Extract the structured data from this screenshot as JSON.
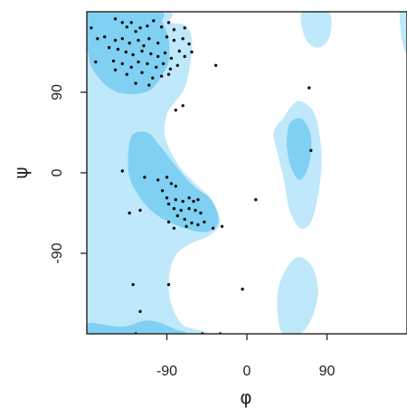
{
  "chart_data": {
    "type": "scatter",
    "title": "",
    "xlabel": "φ",
    "ylabel": "ψ",
    "xlim": [
      -180,
      180
    ],
    "ylim": [
      -180,
      180
    ],
    "xticks": [
      -90,
      0,
      90
    ],
    "xtick_labels": [
      "-90",
      "0",
      "90"
    ],
    "yticks": [
      90,
      0,
      -90
    ],
    "ytick_labels": [
      "90",
      "0",
      "-90"
    ],
    "grid": false,
    "legend": "none",
    "colors": {
      "allowed_region": "#bfe8fa",
      "favoured_region": "#7fd0f2",
      "points": "#111111",
      "frame": "#222222"
    },
    "regions": {
      "allowed": [
        [
          [
            -180,
            180
          ],
          [
            -90,
            180
          ],
          [
            -88,
            168
          ],
          [
            -70,
            165
          ],
          [
            -62,
            150
          ],
          [
            -64,
            120
          ],
          [
            -70,
            95
          ],
          [
            -80,
            80
          ],
          [
            -90,
            65
          ],
          [
            -92,
            40
          ],
          [
            -78,
            10
          ],
          [
            -60,
            -10
          ],
          [
            -40,
            -30
          ],
          [
            -30,
            -55
          ],
          [
            -42,
            -70
          ],
          [
            -65,
            -80
          ],
          [
            -82,
            -95
          ],
          [
            -88,
            -125
          ],
          [
            -84,
            -150
          ],
          [
            -72,
            -170
          ],
          [
            -50,
            -180
          ],
          [
            -180,
            -180
          ]
        ],
        [
          [
            40,
            60
          ],
          [
            57,
            80
          ],
          [
            75,
            68
          ],
          [
            82,
            40
          ],
          [
            84,
            10
          ],
          [
            80,
            -25
          ],
          [
            72,
            -55
          ],
          [
            60,
            -62
          ],
          [
            48,
            -42
          ],
          [
            42,
            -10
          ],
          [
            35,
            20
          ],
          [
            30,
            45
          ]
        ],
        [
          [
            38,
            -120
          ],
          [
            55,
            -95
          ],
          [
            72,
            -103
          ],
          [
            80,
            -130
          ],
          [
            74,
            -160
          ],
          [
            60,
            -180
          ],
          [
            40,
            -180
          ],
          [
            34,
            -150
          ]
        ],
        [
          [
            62,
            180
          ],
          [
            66,
            150
          ],
          [
            80,
            140
          ],
          [
            93,
            152
          ],
          [
            92,
            180
          ]
        ],
        [
          [
            172,
            180
          ],
          [
            174,
            150
          ],
          [
            180,
            135
          ],
          [
            180,
            180
          ]
        ]
      ],
      "favoured": [
        [
          [
            -178,
            180
          ],
          [
            -100,
            180
          ],
          [
            -95,
            168
          ],
          [
            -88,
            150
          ],
          [
            -88,
            125
          ],
          [
            -95,
            110
          ],
          [
            -108,
            93
          ],
          [
            -128,
            88
          ],
          [
            -150,
            92
          ],
          [
            -168,
            108
          ],
          [
            -178,
            130
          ]
        ],
        [
          [
            -130,
            40
          ],
          [
            -112,
            45
          ],
          [
            -98,
            30
          ],
          [
            -82,
            10
          ],
          [
            -60,
            -15
          ],
          [
            -40,
            -30
          ],
          [
            -32,
            -55
          ],
          [
            -45,
            -66
          ],
          [
            -70,
            -62
          ],
          [
            -100,
            -48
          ],
          [
            -120,
            -28
          ],
          [
            -133,
            0
          ]
        ],
        [
          [
            48,
            55
          ],
          [
            62,
            60
          ],
          [
            72,
            40
          ],
          [
            70,
            10
          ],
          [
            60,
            -8
          ],
          [
            50,
            5
          ],
          [
            45,
            30
          ]
        ],
        [
          [
            -178,
            -168
          ],
          [
            -140,
            -172
          ],
          [
            -110,
            -165
          ],
          [
            -80,
            -175
          ],
          [
            -75,
            -180
          ],
          [
            -178,
            -180
          ]
        ]
      ]
    },
    "points": [
      [
        -148,
        172
      ],
      [
        -140,
        168
      ],
      [
        -135,
        163
      ],
      [
        -130,
        168
      ],
      [
        -125,
        158
      ],
      [
        -120,
        162
      ],
      [
        -112,
        164
      ],
      [
        -105,
        170
      ],
      [
        -96,
        163
      ],
      [
        -88,
        168
      ],
      [
        -82,
        160
      ],
      [
        -70,
        162
      ],
      [
        -160,
        152
      ],
      [
        -148,
        148
      ],
      [
        -140,
        150
      ],
      [
        -132,
        145
      ],
      [
        -122,
        148
      ],
      [
        -116,
        142
      ],
      [
        -110,
        150
      ],
      [
        -100,
        145
      ],
      [
        -90,
        152
      ],
      [
        -82,
        148
      ],
      [
        -72,
        150
      ],
      [
        -65,
        144
      ],
      [
        -155,
        140
      ],
      [
        -145,
        138
      ],
      [
        -136,
        135
      ],
      [
        -128,
        132
      ],
      [
        -118,
        136
      ],
      [
        -108,
        133
      ],
      [
        -100,
        130
      ],
      [
        -92,
        134
      ],
      [
        -85,
        128
      ],
      [
        -76,
        136
      ],
      [
        -70,
        130
      ],
      [
        -62,
        135
      ],
      [
        -168,
        150
      ],
      [
        -175,
        162
      ],
      [
        -150,
        125
      ],
      [
        -140,
        122
      ],
      [
        -130,
        118
      ],
      [
        -122,
        124
      ],
      [
        -112,
        122
      ],
      [
        -102,
        118
      ],
      [
        -94,
        122
      ],
      [
        -86,
        116
      ],
      [
        -78,
        120
      ],
      [
        -170,
        124
      ],
      [
        -148,
        115
      ],
      [
        -135,
        110
      ],
      [
        -118,
        112
      ],
      [
        -106,
        106
      ],
      [
        -96,
        108
      ],
      [
        -88,
        110
      ],
      [
        -125,
        100
      ],
      [
        -110,
        98
      ],
      [
        -80,
        70
      ],
      [
        -72,
        75
      ],
      [
        -35,
        120
      ],
      [
        70,
        95
      ],
      [
        -140,
        2
      ],
      [
        -115,
        -5
      ],
      [
        -100,
        -8
      ],
      [
        -90,
        -5
      ],
      [
        -85,
        -12
      ],
      [
        -80,
        -15
      ],
      [
        -95,
        -20
      ],
      [
        -90,
        -28
      ],
      [
        -80,
        -30
      ],
      [
        -72,
        -32
      ],
      [
        -65,
        -28
      ],
      [
        -60,
        -32
      ],
      [
        -55,
        -30
      ],
      [
        -88,
        -35
      ],
      [
        -82,
        -40
      ],
      [
        -74,
        -42
      ],
      [
        -65,
        -40
      ],
      [
        -58,
        -42
      ],
      [
        -52,
        -45
      ],
      [
        -78,
        -48
      ],
      [
        -70,
        -52
      ],
      [
        -62,
        -56
      ],
      [
        -55,
        -58
      ],
      [
        -48,
        -55
      ],
      [
        -88,
        -55
      ],
      [
        -82,
        -62
      ],
      [
        -68,
        -60
      ],
      [
        -120,
        -42
      ],
      [
        -132,
        -45
      ],
      [
        -28,
        -60
      ],
      [
        -38,
        -62
      ],
      [
        10,
        -30
      ],
      [
        72,
        25
      ],
      [
        -128,
        -125
      ],
      [
        -88,
        -125
      ],
      [
        -120,
        -155
      ],
      [
        -5,
        -130
      ],
      [
        -125,
        -180
      ],
      [
        -50,
        -180
      ],
      [
        -30,
        -180
      ]
    ]
  }
}
